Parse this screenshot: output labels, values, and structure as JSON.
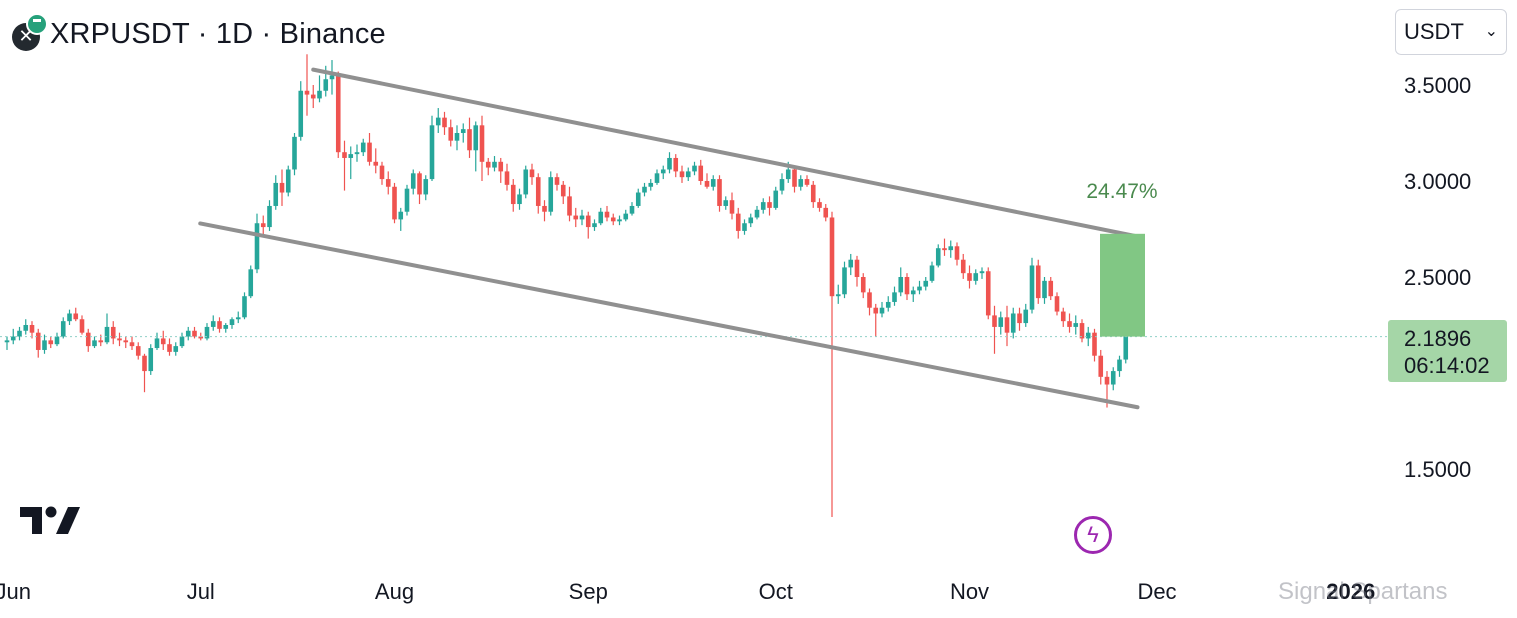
{
  "header": {
    "title": "XRPUSDT · 1D · Binance"
  },
  "currency_select": {
    "value": "USDT",
    "chevron_icon": "chevron-down-icon"
  },
  "price_tag": {
    "price": "2.1896",
    "countdown": "06:14:02",
    "color": "#a5d6a7"
  },
  "measure": {
    "label": "24.47%",
    "color": "#81c784",
    "text_color": "#4a8a4e"
  },
  "watermark": "Signal Spartans",
  "colors": {
    "up": "#26a69a",
    "down": "#ef5350",
    "channel": "#909090",
    "last_price_line": "#8ed0c8",
    "axis_text": "#131722"
  },
  "chart_data": {
    "type": "candlestick",
    "symbol": "XRPUSDT",
    "interval": "1D",
    "exchange": "Binance",
    "y_tick_labels": [
      "3.5000",
      "3.0000",
      "2.5000",
      "1.5000"
    ],
    "x_tick_labels": [
      "Jun",
      "Jul",
      "Aug",
      "Sep",
      "Oct",
      "Nov",
      "Dec",
      "2026"
    ],
    "last_price": 2.1896,
    "measure_range": {
      "from": 2.1896,
      "to": 2.725,
      "percent": "24.47%"
    },
    "channel_upper": [
      [
        "2025-07-19",
        3.58
      ],
      [
        "2025-11-25",
        2.73
      ]
    ],
    "channel_lower": [
      [
        "2025-07-07",
        2.74
      ],
      [
        "2025-11-25",
        1.84
      ]
    ],
    "ohlc": [
      [
        "2025-05-31",
        2.16,
        2.19,
        2.12,
        2.17
      ],
      [
        "2025-06-01",
        2.17,
        2.23,
        2.15,
        2.19
      ],
      [
        "2025-06-02",
        2.19,
        2.24,
        2.17,
        2.22
      ],
      [
        "2025-06-03",
        2.22,
        2.28,
        2.2,
        2.25
      ],
      [
        "2025-06-04",
        2.25,
        2.27,
        2.18,
        2.21
      ],
      [
        "2025-06-05",
        2.21,
        2.23,
        2.08,
        2.12
      ],
      [
        "2025-06-06",
        2.12,
        2.2,
        2.1,
        2.17
      ],
      [
        "2025-06-07",
        2.17,
        2.19,
        2.13,
        2.15
      ],
      [
        "2025-06-08",
        2.15,
        2.21,
        2.14,
        2.19
      ],
      [
        "2025-06-09",
        2.19,
        2.29,
        2.18,
        2.27
      ],
      [
        "2025-06-10",
        2.27,
        2.33,
        2.25,
        2.31
      ],
      [
        "2025-06-11",
        2.31,
        2.34,
        2.27,
        2.28
      ],
      [
        "2025-06-12",
        2.28,
        2.3,
        2.2,
        2.21
      ],
      [
        "2025-06-13",
        2.21,
        2.23,
        2.11,
        2.14
      ],
      [
        "2025-06-14",
        2.14,
        2.19,
        2.13,
        2.17
      ],
      [
        "2025-06-15",
        2.17,
        2.2,
        2.14,
        2.16
      ],
      [
        "2025-06-16",
        2.16,
        2.31,
        2.15,
        2.24
      ],
      [
        "2025-06-17",
        2.24,
        2.27,
        2.15,
        2.18
      ],
      [
        "2025-06-18",
        2.18,
        2.21,
        2.14,
        2.17
      ],
      [
        "2025-06-19",
        2.17,
        2.19,
        2.13,
        2.16
      ],
      [
        "2025-06-20",
        2.16,
        2.19,
        2.12,
        2.14
      ],
      [
        "2025-06-21",
        2.14,
        2.16,
        2.07,
        2.09
      ],
      [
        "2025-06-22",
        2.09,
        2.1,
        1.9,
        2.01
      ],
      [
        "2025-06-23",
        2.01,
        2.15,
        1.99,
        2.13
      ],
      [
        "2025-06-24",
        2.13,
        2.21,
        2.12,
        2.18
      ],
      [
        "2025-06-25",
        2.18,
        2.22,
        2.12,
        2.15
      ],
      [
        "2025-06-26",
        2.15,
        2.18,
        2.09,
        2.11
      ],
      [
        "2025-06-27",
        2.11,
        2.16,
        2.09,
        2.14
      ],
      [
        "2025-06-28",
        2.14,
        2.21,
        2.13,
        2.19
      ],
      [
        "2025-06-29",
        2.19,
        2.24,
        2.17,
        2.22
      ],
      [
        "2025-06-30",
        2.22,
        2.24,
        2.18,
        2.19
      ],
      [
        "2025-07-01",
        2.19,
        2.21,
        2.17,
        2.18
      ],
      [
        "2025-07-02",
        2.18,
        2.26,
        2.17,
        2.24
      ],
      [
        "2025-07-03",
        2.24,
        2.3,
        2.22,
        2.27
      ],
      [
        "2025-07-04",
        2.27,
        2.29,
        2.21,
        2.23
      ],
      [
        "2025-07-05",
        2.23,
        2.26,
        2.21,
        2.25
      ],
      [
        "2025-07-06",
        2.25,
        2.29,
        2.23,
        2.28
      ],
      [
        "2025-07-07",
        2.28,
        2.32,
        2.26,
        2.29
      ],
      [
        "2025-07-08",
        2.29,
        2.42,
        2.28,
        2.4
      ],
      [
        "2025-07-09",
        2.4,
        2.56,
        2.39,
        2.54
      ],
      [
        "2025-07-10",
        2.54,
        2.83,
        2.52,
        2.78
      ],
      [
        "2025-07-11",
        2.78,
        2.82,
        2.72,
        2.76
      ],
      [
        "2025-07-12",
        2.76,
        2.9,
        2.74,
        2.87
      ],
      [
        "2025-07-13",
        2.87,
        3.03,
        2.85,
        2.99
      ],
      [
        "2025-07-14",
        2.99,
        3.06,
        2.87,
        2.94
      ],
      [
        "2025-07-15",
        2.94,
        3.08,
        2.92,
        3.06
      ],
      [
        "2025-07-16",
        3.06,
        3.25,
        3.03,
        3.23
      ],
      [
        "2025-07-17",
        3.23,
        3.52,
        3.21,
        3.47
      ],
      [
        "2025-07-18",
        3.47,
        3.66,
        3.34,
        3.45
      ],
      [
        "2025-07-19",
        3.45,
        3.5,
        3.38,
        3.43
      ],
      [
        "2025-07-20",
        3.43,
        3.55,
        3.41,
        3.47
      ],
      [
        "2025-07-21",
        3.47,
        3.6,
        3.44,
        3.53
      ],
      [
        "2025-07-22",
        3.53,
        3.63,
        3.45,
        3.55
      ],
      [
        "2025-07-23",
        3.55,
        3.57,
        3.12,
        3.15
      ],
      [
        "2025-07-24",
        3.15,
        3.21,
        2.95,
        3.12
      ],
      [
        "2025-07-25",
        3.12,
        3.18,
        3.01,
        3.14
      ],
      [
        "2025-07-26",
        3.14,
        3.19,
        3.1,
        3.15
      ],
      [
        "2025-07-27",
        3.15,
        3.22,
        3.13,
        3.2
      ],
      [
        "2025-07-28",
        3.2,
        3.25,
        3.08,
        3.1
      ],
      [
        "2025-07-29",
        3.1,
        3.17,
        3.04,
        3.08
      ],
      [
        "2025-07-30",
        3.08,
        3.1,
        2.98,
        3.01
      ],
      [
        "2025-07-31",
        3.01,
        3.05,
        2.93,
        2.97
      ],
      [
        "2025-08-01",
        2.97,
        2.99,
        2.78,
        2.8
      ],
      [
        "2025-08-02",
        2.8,
        2.86,
        2.74,
        2.84
      ],
      [
        "2025-08-03",
        2.84,
        2.98,
        2.82,
        2.96
      ],
      [
        "2025-08-04",
        2.96,
        3.06,
        2.93,
        3.04
      ],
      [
        "2025-08-05",
        3.04,
        3.05,
        2.88,
        2.93
      ],
      [
        "2025-08-06",
        2.93,
        3.03,
        2.9,
        3.01
      ],
      [
        "2025-08-07",
        3.01,
        3.34,
        3.0,
        3.29
      ],
      [
        "2025-08-08",
        3.29,
        3.38,
        3.25,
        3.33
      ],
      [
        "2025-08-09",
        3.33,
        3.36,
        3.24,
        3.28
      ],
      [
        "2025-08-10",
        3.28,
        3.32,
        3.18,
        3.21
      ],
      [
        "2025-08-11",
        3.21,
        3.29,
        3.16,
        3.25
      ],
      [
        "2025-08-12",
        3.25,
        3.3,
        3.2,
        3.27
      ],
      [
        "2025-08-13",
        3.27,
        3.33,
        3.12,
        3.16
      ],
      [
        "2025-08-14",
        3.16,
        3.31,
        3.05,
        3.29
      ],
      [
        "2025-08-15",
        3.29,
        3.34,
        3.0,
        3.1
      ],
      [
        "2025-08-16",
        3.1,
        3.12,
        3.03,
        3.07
      ],
      [
        "2025-08-17",
        3.07,
        3.13,
        3.05,
        3.1
      ],
      [
        "2025-08-18",
        3.1,
        3.12,
        2.99,
        3.05
      ],
      [
        "2025-08-19",
        3.05,
        3.09,
        2.95,
        2.98
      ],
      [
        "2025-08-20",
        2.98,
        3.01,
        2.84,
        2.88
      ],
      [
        "2025-08-21",
        2.88,
        2.96,
        2.85,
        2.93
      ],
      [
        "2025-08-22",
        2.93,
        3.08,
        2.91,
        3.06
      ],
      [
        "2025-08-23",
        3.06,
        3.09,
        2.98,
        3.02
      ],
      [
        "2025-08-24",
        3.02,
        3.04,
        2.83,
        2.87
      ],
      [
        "2025-08-25",
        2.87,
        2.9,
        2.79,
        2.84
      ],
      [
        "2025-08-26",
        2.84,
        3.05,
        2.82,
        3.02
      ],
      [
        "2025-08-27",
        3.02,
        3.04,
        2.95,
        2.98
      ],
      [
        "2025-08-28",
        2.98,
        3.0,
        2.88,
        2.92
      ],
      [
        "2025-08-29",
        2.92,
        2.97,
        2.79,
        2.82
      ],
      [
        "2025-08-30",
        2.82,
        2.86,
        2.76,
        2.8
      ],
      [
        "2025-08-31",
        2.8,
        2.85,
        2.77,
        2.82
      ],
      [
        "2025-09-01",
        2.82,
        2.84,
        2.7,
        2.76
      ],
      [
        "2025-09-02",
        2.76,
        2.8,
        2.74,
        2.78
      ],
      [
        "2025-09-03",
        2.78,
        2.86,
        2.77,
        2.84
      ],
      [
        "2025-09-04",
        2.84,
        2.87,
        2.79,
        2.81
      ],
      [
        "2025-09-05",
        2.81,
        2.83,
        2.77,
        2.79
      ],
      [
        "2025-09-06",
        2.79,
        2.82,
        2.77,
        2.8
      ],
      [
        "2025-09-07",
        2.8,
        2.85,
        2.79,
        2.83
      ],
      [
        "2025-09-08",
        2.83,
        2.89,
        2.82,
        2.87
      ],
      [
        "2025-09-09",
        2.87,
        2.96,
        2.86,
        2.94
      ],
      [
        "2025-09-10",
        2.94,
        2.99,
        2.92,
        2.97
      ],
      [
        "2025-09-11",
        2.97,
        3.01,
        2.95,
        2.99
      ],
      [
        "2025-09-12",
        2.99,
        3.06,
        2.98,
        3.04
      ],
      [
        "2025-09-13",
        3.04,
        3.08,
        3.01,
        3.06
      ],
      [
        "2025-09-14",
        3.06,
        3.15,
        3.04,
        3.12
      ],
      [
        "2025-09-15",
        3.12,
        3.14,
        3.02,
        3.05
      ],
      [
        "2025-09-16",
        3.05,
        3.08,
        2.99,
        3.02
      ],
      [
        "2025-09-17",
        3.02,
        3.07,
        3.0,
        3.05
      ],
      [
        "2025-09-18",
        3.05,
        3.1,
        3.03,
        3.08
      ],
      [
        "2025-09-19",
        3.08,
        3.11,
        2.98,
        3.0
      ],
      [
        "2025-09-20",
        3.0,
        3.04,
        2.96,
        2.97
      ],
      [
        "2025-09-21",
        2.97,
        3.03,
        2.95,
        3.01
      ],
      [
        "2025-09-22",
        3.01,
        3.03,
        2.84,
        2.87
      ],
      [
        "2025-09-23",
        2.87,
        2.92,
        2.85,
        2.9
      ],
      [
        "2025-09-24",
        2.9,
        2.94,
        2.8,
        2.83
      ],
      [
        "2025-09-25",
        2.83,
        2.86,
        2.7,
        2.74
      ],
      [
        "2025-09-26",
        2.74,
        2.8,
        2.72,
        2.78
      ],
      [
        "2025-09-27",
        2.78,
        2.83,
        2.76,
        2.81
      ],
      [
        "2025-09-28",
        2.81,
        2.87,
        2.8,
        2.85
      ],
      [
        "2025-09-29",
        2.85,
        2.91,
        2.83,
        2.89
      ],
      [
        "2025-09-30",
        2.89,
        2.92,
        2.82,
        2.86
      ],
      [
        "2025-10-01",
        2.86,
        2.97,
        2.85,
        2.95
      ],
      [
        "2025-10-02",
        2.95,
        3.04,
        2.93,
        3.01
      ],
      [
        "2025-10-03",
        3.01,
        3.1,
        2.99,
        3.06
      ],
      [
        "2025-10-04",
        3.06,
        3.08,
        2.94,
        2.97
      ],
      [
        "2025-10-05",
        2.97,
        3.03,
        2.95,
        3.01
      ],
      [
        "2025-10-06",
        3.01,
        3.03,
        2.97,
        2.98
      ],
      [
        "2025-10-07",
        2.98,
        3.0,
        2.86,
        2.89
      ],
      [
        "2025-10-08",
        2.89,
        2.91,
        2.84,
        2.86
      ],
      [
        "2025-10-09",
        2.86,
        2.88,
        2.79,
        2.81
      ],
      [
        "2025-10-10",
        2.81,
        2.84,
        1.25,
        2.4
      ],
      [
        "2025-10-11",
        2.4,
        2.46,
        2.36,
        2.41
      ],
      [
        "2025-10-12",
        2.41,
        2.58,
        2.39,
        2.55
      ],
      [
        "2025-10-13",
        2.55,
        2.62,
        2.51,
        2.59
      ],
      [
        "2025-10-14",
        2.59,
        2.61,
        2.45,
        2.5
      ],
      [
        "2025-10-15",
        2.5,
        2.52,
        2.39,
        2.42
      ],
      [
        "2025-10-16",
        2.42,
        2.44,
        2.3,
        2.34
      ],
      [
        "2025-10-17",
        2.34,
        2.36,
        2.19,
        2.31
      ],
      [
        "2025-10-18",
        2.31,
        2.37,
        2.29,
        2.34
      ],
      [
        "2025-10-19",
        2.34,
        2.4,
        2.32,
        2.37
      ],
      [
        "2025-10-20",
        2.37,
        2.45,
        2.35,
        2.42
      ],
      [
        "2025-10-21",
        2.42,
        2.55,
        2.4,
        2.5
      ],
      [
        "2025-10-22",
        2.5,
        2.52,
        2.38,
        2.41
      ],
      [
        "2025-10-23",
        2.41,
        2.45,
        2.37,
        2.43
      ],
      [
        "2025-10-24",
        2.43,
        2.48,
        2.41,
        2.45
      ],
      [
        "2025-10-25",
        2.45,
        2.5,
        2.43,
        2.48
      ],
      [
        "2025-10-26",
        2.48,
        2.58,
        2.47,
        2.56
      ],
      [
        "2025-10-27",
        2.56,
        2.67,
        2.55,
        2.65
      ],
      [
        "2025-10-28",
        2.65,
        2.7,
        2.61,
        2.64
      ],
      [
        "2025-10-29",
        2.64,
        2.69,
        2.6,
        2.66
      ],
      [
        "2025-10-30",
        2.66,
        2.68,
        2.56,
        2.59
      ],
      [
        "2025-10-31",
        2.59,
        2.62,
        2.49,
        2.52
      ],
      [
        "2025-11-01",
        2.52,
        2.56,
        2.44,
        2.48
      ],
      [
        "2025-11-02",
        2.48,
        2.54,
        2.46,
        2.52
      ],
      [
        "2025-11-03",
        2.52,
        2.55,
        2.49,
        2.53
      ],
      [
        "2025-11-04",
        2.53,
        2.55,
        2.28,
        2.3
      ],
      [
        "2025-11-05",
        2.3,
        2.35,
        2.1,
        2.24
      ],
      [
        "2025-11-06",
        2.24,
        2.32,
        2.2,
        2.29
      ],
      [
        "2025-11-07",
        2.29,
        2.35,
        2.14,
        2.21
      ],
      [
        "2025-11-08",
        2.21,
        2.34,
        2.18,
        2.31
      ],
      [
        "2025-11-09",
        2.31,
        2.34,
        2.22,
        2.26
      ],
      [
        "2025-11-10",
        2.26,
        2.36,
        2.24,
        2.33
      ],
      [
        "2025-11-11",
        2.33,
        2.6,
        2.31,
        2.56
      ],
      [
        "2025-11-12",
        2.56,
        2.59,
        2.36,
        2.39
      ],
      [
        "2025-11-13",
        2.39,
        2.5,
        2.36,
        2.48
      ],
      [
        "2025-11-14",
        2.48,
        2.5,
        2.38,
        2.4
      ],
      [
        "2025-11-15",
        2.4,
        2.42,
        2.3,
        2.32
      ],
      [
        "2025-11-16",
        2.32,
        2.34,
        2.24,
        2.27
      ],
      [
        "2025-11-17",
        2.27,
        2.31,
        2.21,
        2.24
      ],
      [
        "2025-11-18",
        2.24,
        2.3,
        2.2,
        2.26
      ],
      [
        "2025-11-19",
        2.26,
        2.28,
        2.16,
        2.18
      ],
      [
        "2025-11-20",
        2.18,
        2.24,
        2.14,
        2.21
      ],
      [
        "2025-11-21",
        2.21,
        2.23,
        2.06,
        2.09
      ],
      [
        "2025-11-22",
        2.09,
        2.12,
        1.94,
        1.98
      ],
      [
        "2025-11-23",
        1.98,
        2.01,
        1.82,
        1.94
      ],
      [
        "2025-11-24",
        1.94,
        2.03,
        1.91,
        2.01
      ],
      [
        "2025-11-25",
        2.01,
        2.09,
        1.98,
        2.07
      ],
      [
        "2025-11-26",
        2.07,
        2.2,
        2.05,
        2.1896
      ]
    ]
  }
}
